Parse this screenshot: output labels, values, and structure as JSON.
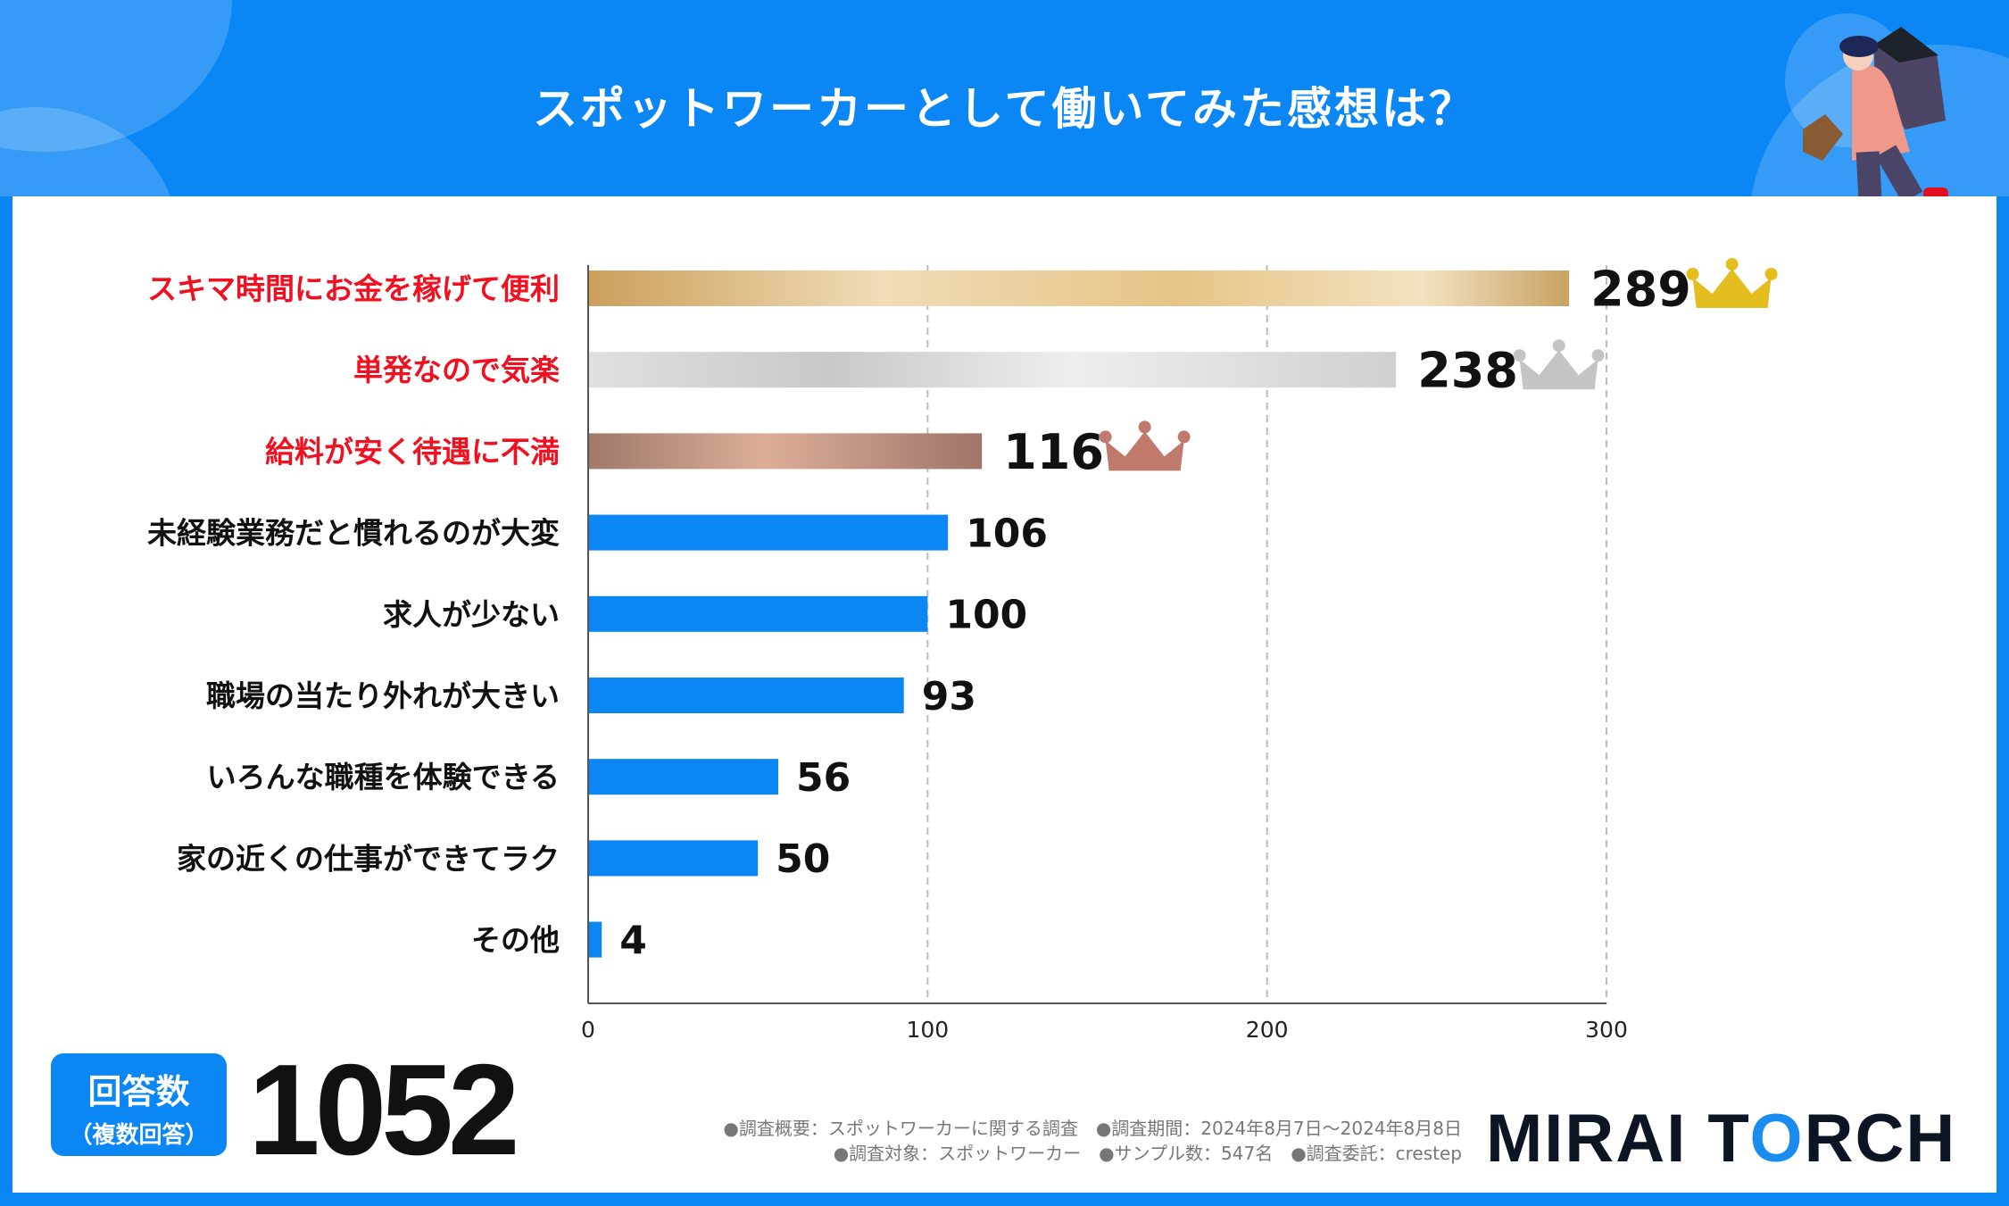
{
  "title": "スポットワーカーとして働いてみた感想は？",
  "chart_data": {
    "type": "bar",
    "orientation": "horizontal",
    "categories": [
      "スキマ時間にお金を稼げて便利",
      "単発なので気楽",
      "給料が安く待遇に不満",
      "未経験業務だと慣れるのが大変",
      "求人が少ない",
      "職場の当たり外れが大きい",
      "いろんな職種を体験できる",
      "家の近くの仕事ができてラク",
      "その他"
    ],
    "values": [
      289,
      238,
      116,
      106,
      100,
      93,
      56,
      50,
      4
    ],
    "xlim": [
      0,
      300
    ],
    "xticks": [
      "0",
      "100",
      "200",
      "300"
    ],
    "grid": "vertical dashed",
    "highlight_colors": [
      "#e0bd7e",
      "#d8d8d8",
      "#b88a7c"
    ],
    "bar_color": "#0a86f5",
    "crowns": [
      "gold",
      "silver",
      "bronze"
    ],
    "crown_colors": [
      "#e4bd1e",
      "#c4c4c4",
      "#c07a6c"
    ]
  },
  "answers": {
    "label": "回答数",
    "sub": "（複数回答）",
    "total": "1052"
  },
  "footer": {
    "line1": "●調査概要：スポットワーカーに関する調査　●調査期間：2024年8月7日～2024年8月8日",
    "line2": "●調査対象：スポットワーカー　●サンプル数：547名　●調査委託：crestep"
  },
  "logo": "MIRAI TORCH"
}
